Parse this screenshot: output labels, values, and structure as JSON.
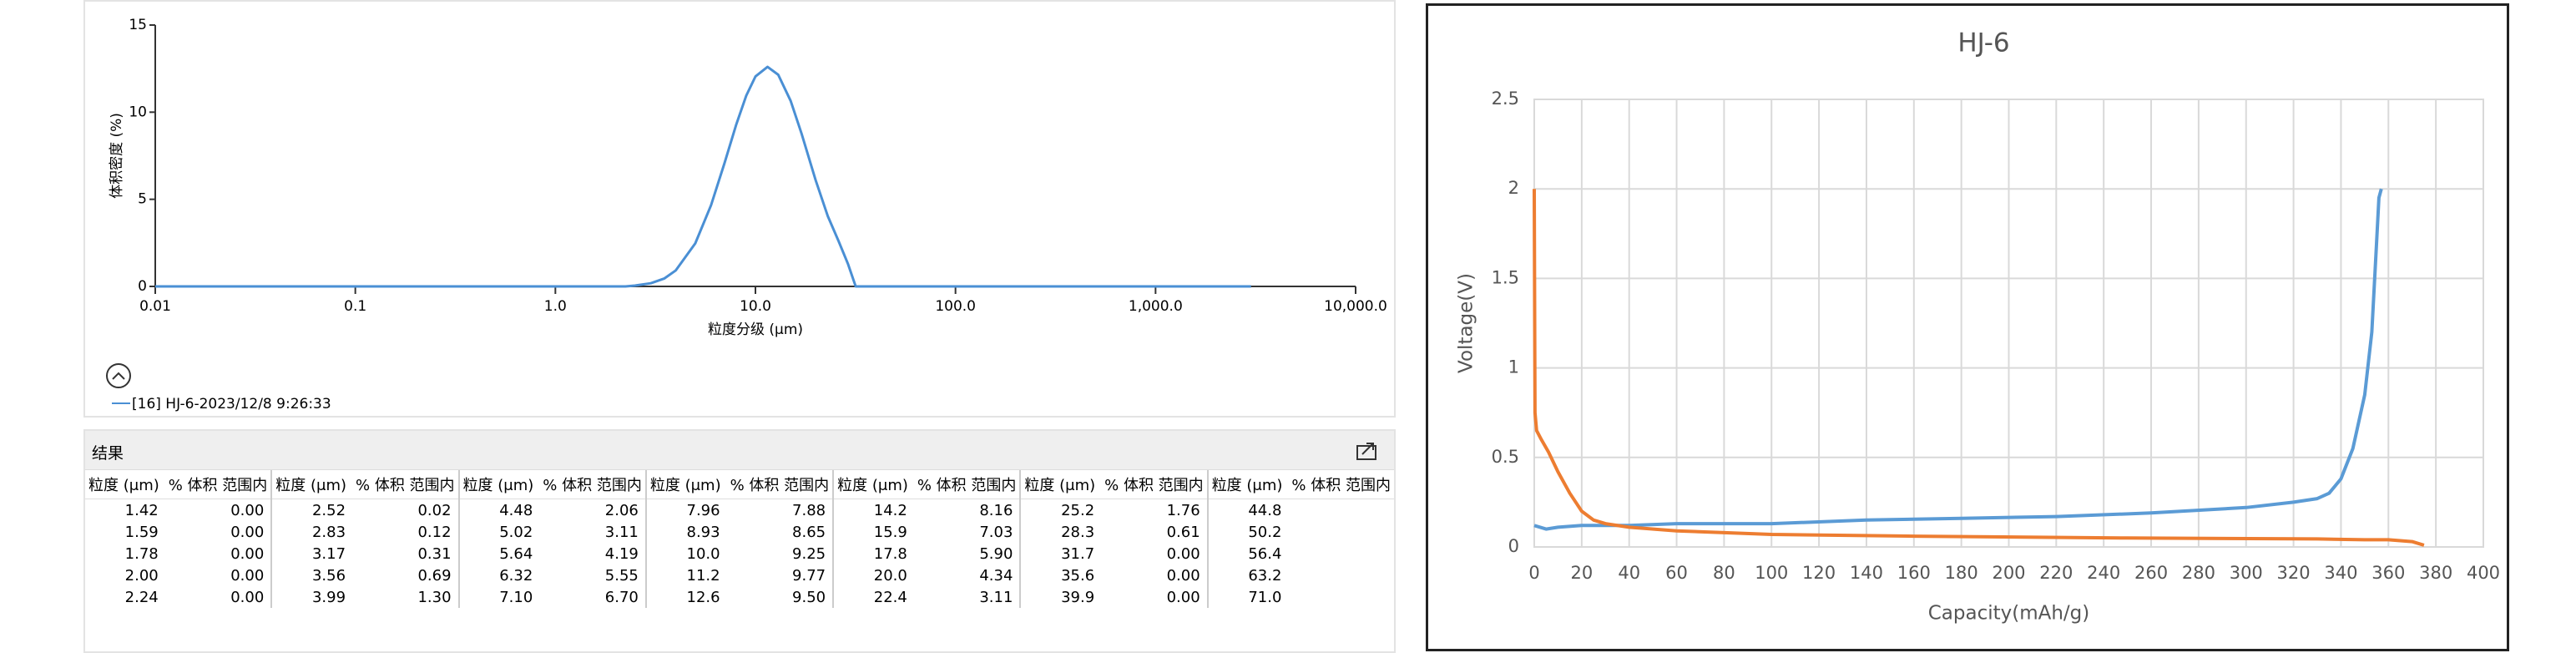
{
  "chart_data": [
    {
      "type": "line",
      "x_label": "粒度分级 (μm)",
      "y_label": "体积密度 (%)",
      "log_x": true,
      "xlim": [
        0.01,
        10000
      ],
      "xticks": [
        0.01,
        0.1,
        {
          "value": 1,
          "label": "1.0"
        },
        {
          "value": 10,
          "label": "10.0"
        },
        {
          "value": 100,
          "label": "100.0"
        },
        {
          "value": 1000,
          "label": "1,000.0"
        },
        {
          "value": 10000,
          "label": "10,000.0"
        }
      ],
      "ylim": [
        0,
        15
      ],
      "yticks": [
        0,
        5,
        10,
        15
      ],
      "grid": false,
      "series": [
        {
          "name": "[16] HJ-6-2023/12/8 9:26:33",
          "color": "#4a8fd4",
          "x": [
            0.01,
            2.24,
            2.5,
            3,
            3.5,
            4,
            5,
            6,
            7,
            8,
            9,
            10,
            11.5,
            13,
            15,
            17,
            20,
            23,
            26,
            29,
            31.7,
            3000
          ],
          "values": [
            0,
            0,
            0.05,
            0.18,
            0.45,
            0.92,
            2.47,
            4.66,
            7.07,
            9.26,
            10.95,
            12.05,
            12.6,
            12.15,
            10.65,
            8.78,
            6.1,
            4.03,
            2.61,
            1.3,
            0,
            0
          ]
        }
      ]
    },
    {
      "type": "line",
      "title": "HJ-6",
      "x_label": "Capacity(mAh/g)",
      "y_label": "Voltage(V)",
      "xlim": [
        0,
        400
      ],
      "xticks": [
        0,
        20,
        40,
        60,
        80,
        100,
        120,
        140,
        160,
        180,
        200,
        220,
        240,
        260,
        280,
        300,
        320,
        340,
        360,
        380,
        400
      ],
      "ylim": [
        0,
        2.5
      ],
      "yticks": [
        0,
        0.5,
        1,
        1.5,
        2,
        2.5
      ],
      "grid": true,
      "series": [
        {
          "color": "#5b9bd5",
          "x": [
            0,
            5,
            10,
            20,
            40,
            60,
            100,
            140,
            180,
            220,
            260,
            300,
            320,
            330,
            335,
            340,
            345,
            350,
            353,
            355,
            356,
            357
          ],
          "values": [
            0.12,
            0.1,
            0.11,
            0.12,
            0.12,
            0.13,
            0.13,
            0.15,
            0.16,
            0.17,
            0.19,
            0.22,
            0.25,
            0.27,
            0.3,
            0.38,
            0.55,
            0.85,
            1.2,
            1.7,
            1.95,
            2.0
          ]
        },
        {
          "color": "#ed7d31",
          "x": [
            0,
            0.3,
            1,
            3,
            6,
            10,
            15,
            20,
            25,
            30,
            40,
            60,
            100,
            160,
            250,
            330,
            350,
            360,
            370,
            375
          ],
          "values": [
            2.0,
            0.75,
            0.65,
            0.6,
            0.53,
            0.42,
            0.3,
            0.2,
            0.15,
            0.13,
            0.11,
            0.09,
            0.07,
            0.06,
            0.05,
            0.045,
            0.04,
            0.04,
            0.03,
            0.01
          ]
        }
      ]
    }
  ],
  "results": {
    "title": "结果",
    "headers": [
      "粒度 (μm)",
      "% 体积 范围内",
      "粒度 (μm)",
      "% 体积 范围内",
      "粒度 (μm)",
      "% 体积 范围内",
      "粒度 (μm)",
      "% 体积 范围内",
      "粒度 (μm)",
      "% 体积 范围内",
      "粒度 (μm)",
      "% 体积 范围内",
      "粒度 (μm)",
      "% 体积 范围内"
    ],
    "rows": [
      [
        "1.42",
        "0.00",
        "2.52",
        "0.02",
        "4.48",
        "2.06",
        "7.96",
        "7.88",
        "14.2",
        "8.16",
        "25.2",
        "1.76",
        "44.8"
      ],
      [
        "1.59",
        "0.00",
        "2.83",
        "0.12",
        "5.02",
        "3.11",
        "8.93",
        "8.65",
        "15.9",
        "7.03",
        "28.3",
        "0.61",
        "50.2"
      ],
      [
        "1.78",
        "0.00",
        "3.17",
        "0.31",
        "5.64",
        "4.19",
        "10.0",
        "9.25",
        "17.8",
        "5.90",
        "31.7",
        "0.00",
        "56.4"
      ],
      [
        "2.00",
        "0.00",
        "3.56",
        "0.69",
        "6.32",
        "5.55",
        "11.2",
        "9.77",
        "20.0",
        "4.34",
        "35.6",
        "0.00",
        "63.2"
      ],
      [
        "2.24",
        "0.00",
        "3.99",
        "1.30",
        "7.10",
        "6.70",
        "12.6",
        "9.50",
        "22.4",
        "3.11",
        "39.9",
        "0.00",
        "71.0"
      ]
    ]
  }
}
